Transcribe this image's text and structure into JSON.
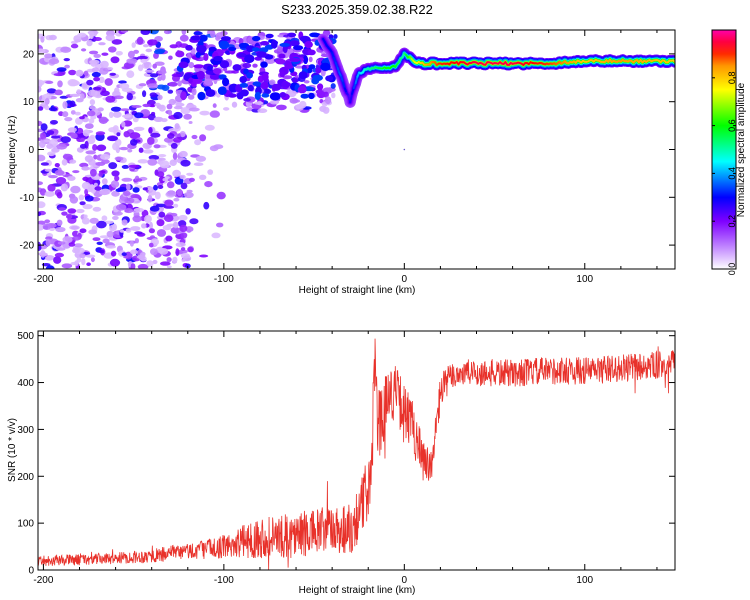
{
  "page_title": "S233.2025.359.02.38.R22",
  "colors": {
    "snr_line": "#e8312a",
    "frame": "#000000",
    "colorbar": [
      "#ff00aa",
      "#ff0000",
      "#ffaa00",
      "#ffff00",
      "#00ff00",
      "#00ffff",
      "#0000ff",
      "#7f00ff",
      "#ffffff"
    ]
  },
  "chart_data": [
    {
      "id": "spectrogram",
      "type": "heatmap",
      "title": "S233.2025.359.02.38.R22",
      "xlabel": "Height of straight line (km)",
      "ylabel": "Frequency (Hz)",
      "xlim": [
        -203,
        150
      ],
      "ylim": [
        -25,
        25
      ],
      "x_ticks": [
        -200,
        -100,
        0,
        100
      ],
      "x_tick_labels": [
        "-200",
        "-100",
        "0",
        "100"
      ],
      "y_ticks": [
        20,
        10,
        0,
        -10,
        -20
      ],
      "y_tick_labels": [
        "20",
        "10",
        "0",
        "-10",
        "-20"
      ],
      "colorbar": {
        "label": "Normalized spectral amplitude",
        "range": [
          0,
          1
        ],
        "ticks": [
          0.0,
          0.2,
          0.4,
          0.6,
          0.8
        ],
        "tick_labels": [
          "0.0",
          "0.2",
          "0.4",
          "0.6",
          "0.8"
        ]
      },
      "ridge": {
        "x": [
          -45,
          -40,
          -35,
          -32,
          -30,
          -28,
          -25,
          -20,
          -15,
          -10,
          -5,
          0,
          5,
          10,
          20,
          40,
          60,
          80,
          100,
          120,
          150
        ],
        "frequency": [
          23,
          20,
          15,
          12,
          10,
          13,
          16,
          17,
          17,
          17,
          17.5,
          20,
          18.5,
          18,
          18,
          18,
          18,
          18,
          18.5,
          18.5,
          18.5
        ],
        "peak_amplitude": [
          0.3,
          0.3,
          0.35,
          0.3,
          0.25,
          0.3,
          0.4,
          0.5,
          0.55,
          0.6,
          0.6,
          0.5,
          0.7,
          0.8,
          0.9,
          0.95,
          0.95,
          0.9,
          0.8,
          0.85,
          0.8
        ]
      },
      "noise_region": {
        "x_range": [
          -203,
          -40
        ],
        "frequency_range": [
          -25,
          25
        ],
        "amplitude_range": [
          0.05,
          0.3
        ]
      }
    },
    {
      "id": "snr",
      "type": "line",
      "xlabel": "Height of straight line (km)",
      "ylabel": "SNR (10 * v/v)",
      "xlim": [
        -203,
        150
      ],
      "ylim": [
        0,
        510
      ],
      "x_ticks": [
        -200,
        -100,
        0,
        100
      ],
      "x_tick_labels": [
        "-200",
        "-100",
        "0",
        "100"
      ],
      "y_ticks": [
        0,
        100,
        200,
        300,
        400,
        500
      ],
      "y_tick_labels": [
        "0",
        "100",
        "200",
        "300",
        "400",
        "500"
      ],
      "series": [
        {
          "name": "SNR",
          "x": [
            -203,
            -180,
            -160,
            -140,
            -120,
            -100,
            -90,
            -80,
            -70,
            -60,
            -50,
            -40,
            -30,
            -25,
            -20,
            -17,
            -16,
            -15,
            -12,
            -10,
            -5,
            0,
            5,
            8,
            10,
            15,
            20,
            25,
            30,
            40,
            60,
            80,
            100,
            120,
            150
          ],
          "y": [
            20,
            22,
            25,
            30,
            40,
            50,
            60,
            70,
            70,
            75,
            80,
            85,
            90,
            120,
            180,
            250,
            470,
            300,
            330,
            370,
            380,
            340,
            300,
            280,
            230,
            210,
            380,
            410,
            420,
            420,
            420,
            425,
            425,
            430,
            440
          ],
          "noise_amplitude": [
            12,
            12,
            12,
            15,
            18,
            25,
            35,
            45,
            45,
            50,
            50,
            55,
            60,
            60,
            70,
            80,
            40,
            80,
            70,
            60,
            60,
            60,
            60,
            60,
            50,
            50,
            40,
            30,
            30,
            30,
            30,
            30,
            30,
            30,
            30
          ]
        }
      ]
    }
  ]
}
